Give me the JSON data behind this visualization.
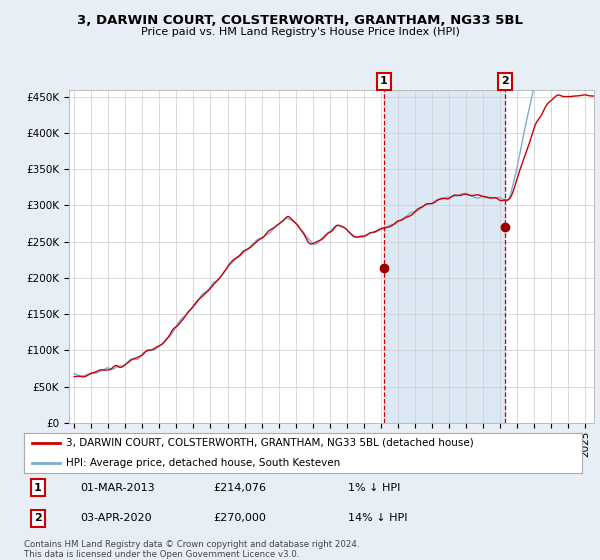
{
  "title": "3, DARWIN COURT, COLSTERWORTH, GRANTHAM, NG33 5BL",
  "subtitle": "Price paid vs. HM Land Registry's House Price Index (HPI)",
  "legend_line1": "3, DARWIN COURT, COLSTERWORTH, GRANTHAM, NG33 5BL (detached house)",
  "legend_line2": "HPI: Average price, detached house, South Kesteven",
  "annotation1_label": "1",
  "annotation1_date": "01-MAR-2013",
  "annotation1_price": "£214,076",
  "annotation1_pct": "1% ↓ HPI",
  "annotation2_label": "2",
  "annotation2_date": "03-APR-2020",
  "annotation2_price": "£270,000",
  "annotation2_pct": "14% ↓ HPI",
  "footer": "Contains HM Land Registry data © Crown copyright and database right 2024.\nThis data is licensed under the Open Government Licence v3.0.",
  "hpi_color": "#7bafd4",
  "price_color": "#cc0000",
  "shade_color": "#dde8f5",
  "background_color": "#e8eef5",
  "plot_bg_color": "#ffffff",
  "ylim": [
    0,
    460000
  ],
  "yticks": [
    0,
    50000,
    100000,
    150000,
    200000,
    250000,
    300000,
    350000,
    400000,
    450000
  ],
  "ann1_x_year": 2013.17,
  "ann1_y": 214076,
  "ann2_x_year": 2020.28,
  "ann2_y": 270000,
  "vline1_x": 2013.17,
  "vline2_x": 2020.28,
  "xmin": 1994.7,
  "xmax": 2025.5
}
